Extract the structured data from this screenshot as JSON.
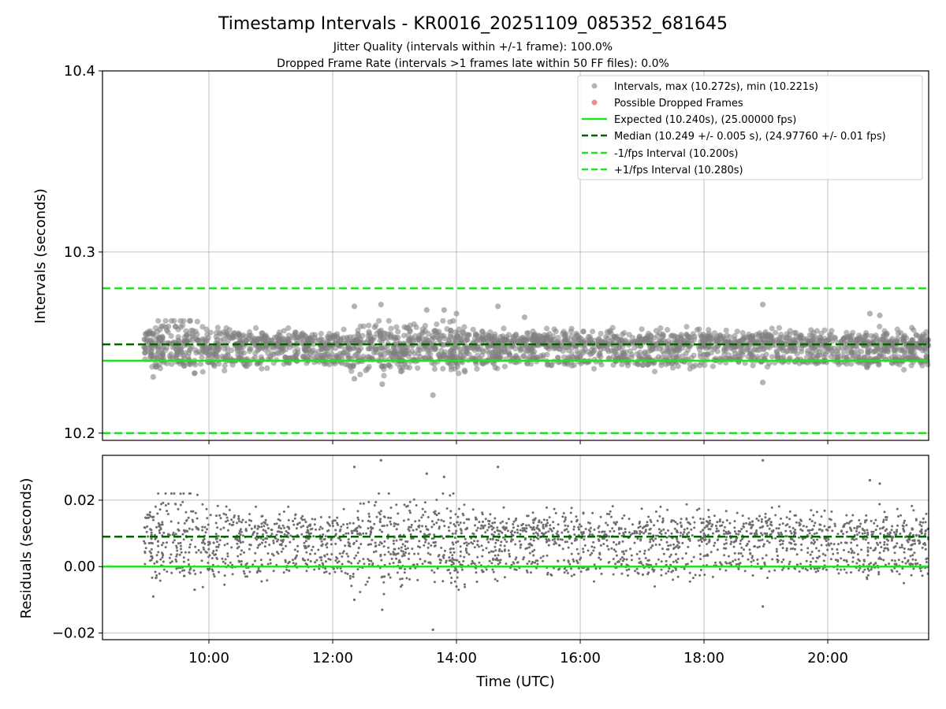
{
  "chart_data": [
    {
      "type": "scatter",
      "title": "Timestamp Intervals - KR0016_20251109_085352_681645",
      "subtitle_1": "Jitter Quality (intervals within +/-1 frame): 100.0%",
      "subtitle_2": "Dropped Frame Rate (intervals >1 frames late within 50 FF files): 0.0%",
      "ylabel": "Intervals (seconds)",
      "xlim_hours": [
        8.28,
        21.63
      ],
      "ylim": [
        10.196,
        10.4
      ],
      "yticks": [
        10.2,
        10.3,
        10.4
      ],
      "ytick_labels": [
        "10.2",
        "10.3",
        "10.4"
      ],
      "grid": true,
      "legend_position": "top-right",
      "series": [
        {
          "name": "Intervals, max (10.272s), min (10.221s)",
          "kind": "scatter",
          "color": "#808080",
          "x_range_hours": [
            8.95,
            21.63
          ],
          "max": 10.272,
          "min": 10.221,
          "center": 10.2455
        },
        {
          "name": "Possible Dropped Frames",
          "kind": "scatter",
          "color": "#f08080",
          "count": 0
        },
        {
          "name": "Expected (10.240s), (25.00000 fps)",
          "kind": "hline",
          "value": 10.24,
          "color": "#22e022",
          "dash": "solid"
        },
        {
          "name": "Median (10.249 +/- 0.005 s), (24.97760 +/- 0.01 fps)",
          "kind": "hline",
          "value": 10.249,
          "color": "#006400",
          "dash": "dashed"
        },
        {
          "name": "-1/fps Interval (10.200s)",
          "kind": "hline",
          "value": 10.2,
          "color": "#22e022",
          "dash": "dashed"
        },
        {
          "name": "+1/fps Interval (10.280s)",
          "kind": "hline",
          "value": 10.28,
          "color": "#22e022",
          "dash": "dashed"
        }
      ],
      "outliers": [
        {
          "x": 12.35,
          "y": 10.27
        },
        {
          "x": 12.78,
          "y": 10.271
        },
        {
          "x": 14.67,
          "y": 10.27
        },
        {
          "x": 18.95,
          "y": 10.271
        },
        {
          "x": 13.62,
          "y": 10.221
        },
        {
          "x": 12.8,
          "y": 10.227
        },
        {
          "x": 18.95,
          "y": 10.228
        },
        {
          "x": 20.68,
          "y": 10.266
        },
        {
          "x": 20.84,
          "y": 10.265
        },
        {
          "x": 13.8,
          "y": 10.268
        },
        {
          "x": 13.52,
          "y": 10.268
        },
        {
          "x": 12.35,
          "y": 10.23
        },
        {
          "x": 15.1,
          "y": 10.264
        },
        {
          "x": 14.0,
          "y": 10.266
        },
        {
          "x": 9.1,
          "y": 10.231
        }
      ]
    },
    {
      "type": "scatter",
      "xlabel": "Time (UTC)",
      "ylabel": "Residuals (seconds)",
      "xlim_hours": [
        8.28,
        21.63
      ],
      "ylim": [
        -0.022,
        0.0335
      ],
      "yticks": [
        -0.02,
        0.0,
        0.02
      ],
      "ytick_labels": [
        "−0.02",
        "0.00",
        "0.02"
      ],
      "xticks_hours": [
        10,
        12,
        14,
        16,
        18,
        20
      ],
      "xtick_labels": [
        "10:00",
        "12:00",
        "14:00",
        "16:00",
        "18:00",
        "20:00"
      ],
      "grid": true,
      "series": [
        {
          "name": "Residuals",
          "kind": "scatter",
          "color": "#6e6e6e",
          "x_range_hours": [
            8.95,
            21.63
          ],
          "max": 0.032,
          "min": -0.019
        },
        {
          "name": "Median residual",
          "kind": "hline",
          "value": 0.009,
          "color": "#006400",
          "dash": "dashed"
        },
        {
          "name": "Zero",
          "kind": "hline",
          "value": 0.0,
          "color": "#22e022",
          "dash": "solid"
        }
      ],
      "outliers": [
        {
          "x": 12.78,
          "y": 0.032
        },
        {
          "x": 12.35,
          "y": 0.03
        },
        {
          "x": 14.67,
          "y": 0.03
        },
        {
          "x": 18.95,
          "y": 0.032
        },
        {
          "x": 13.52,
          "y": 0.028
        },
        {
          "x": 13.8,
          "y": 0.027
        },
        {
          "x": 20.68,
          "y": 0.026
        },
        {
          "x": 20.84,
          "y": 0.025
        },
        {
          "x": 13.62,
          "y": -0.019
        },
        {
          "x": 12.8,
          "y": -0.013
        },
        {
          "x": 18.95,
          "y": -0.012
        },
        {
          "x": 12.35,
          "y": -0.01
        },
        {
          "x": 9.1,
          "y": -0.009
        },
        {
          "x": 14.0,
          "y": -0.006
        }
      ]
    }
  ]
}
